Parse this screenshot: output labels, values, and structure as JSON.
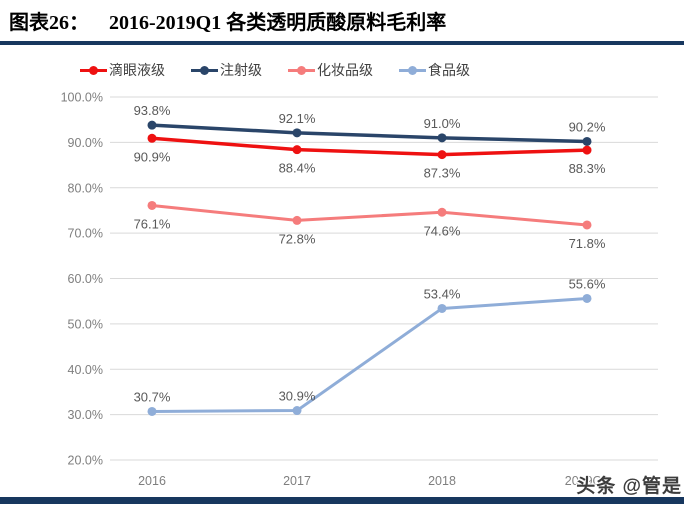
{
  "header": {
    "label": "图表26：",
    "title": "2016-2019Q1 各类透明质酸原料毛利率",
    "rule_color": "#17375e"
  },
  "footer": {
    "bar_color": "#17375e"
  },
  "watermark": {
    "text": "头条 @管是",
    "color": "#3d3d3d"
  },
  "chart_data": {
    "type": "line",
    "title": "2016-2019Q1 各类透明质酸原料毛利率",
    "categories": [
      "2016",
      "2017",
      "2018",
      "2019Q1"
    ],
    "series": [
      {
        "id": "eye-drop-grade",
        "name": "滴眼液级",
        "values": [
          90.9,
          88.4,
          87.3,
          88.3
        ],
        "labels": [
          "90.9%",
          "88.4%",
          "87.3%",
          "88.3%"
        ],
        "color": "#ee1111",
        "label_position": "below"
      },
      {
        "id": "injection-grade",
        "name": "注射级",
        "values": [
          93.8,
          92.1,
          91.0,
          90.2
        ],
        "labels": [
          "93.8%",
          "92.1%",
          "91.0%",
          "90.2%"
        ],
        "color": "#2a4569",
        "label_position": "above"
      },
      {
        "id": "cosmetic-grade",
        "name": "化妆品级",
        "values": [
          76.1,
          72.8,
          74.6,
          71.8
        ],
        "labels": [
          "76.1%",
          "72.8%",
          "74.6%",
          "71.8%"
        ],
        "color": "#f57c7c",
        "label_position": "below"
      },
      {
        "id": "food-grade",
        "name": "食品级",
        "values": [
          30.7,
          30.9,
          53.4,
          55.6
        ],
        "labels": [
          "30.7%",
          "30.9%",
          "53.4%",
          "55.6%"
        ],
        "color": "#8fadd8",
        "label_position": "above"
      }
    ],
    "ylim": [
      20,
      100
    ],
    "ytick_values": [
      100,
      90,
      80,
      70,
      60,
      50,
      40,
      30,
      20
    ],
    "ytick_labels": [
      "100.0%",
      "90.0%",
      "80.0%",
      "70.0%",
      "60.0%",
      "50.0%",
      "40.0%",
      "30.0%",
      "20.0%"
    ],
    "grid": true,
    "legend_position": "top",
    "gridline_color": "#d9d9d9",
    "axis_label_color": "#7f7f7f",
    "data_label_color": "#595959",
    "legend_label_color": "#404040"
  }
}
